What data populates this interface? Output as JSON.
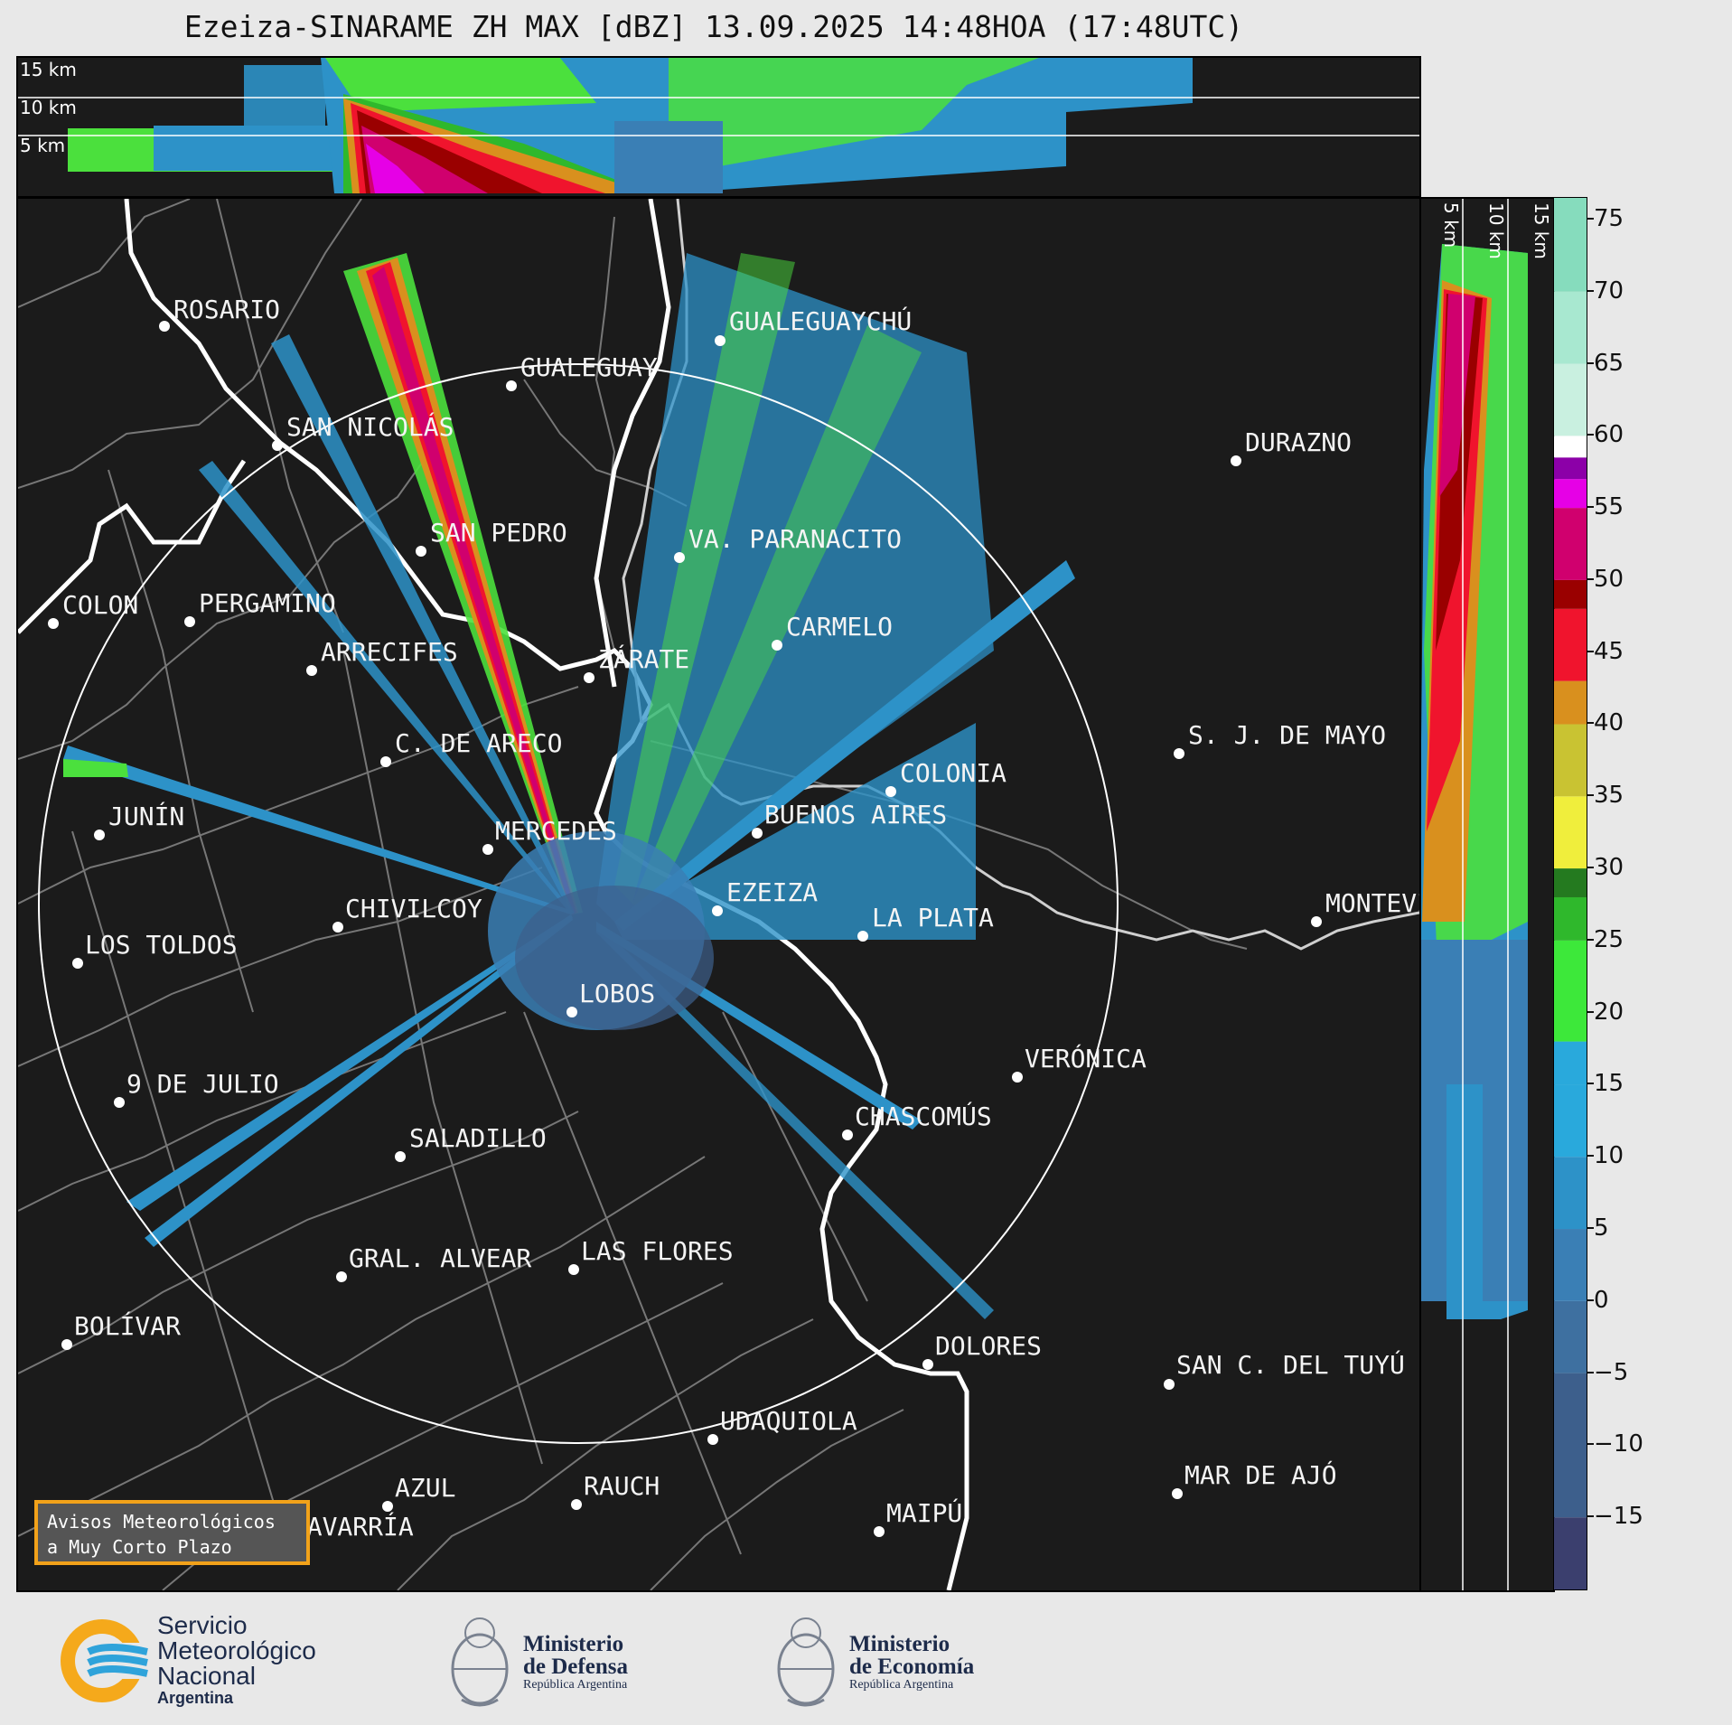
{
  "title": "Ezeiza-SINARAME ZH MAX [dBZ] 13.09.2025 14:48HOA (17:48UTC)",
  "top_panel": {
    "height_labels": [
      "15 km",
      "10 km",
      "5 km"
    ]
  },
  "right_panel": {
    "height_labels": [
      "5 km",
      "10 km",
      "15 km"
    ]
  },
  "colorbar": {
    "unit": "dBZ",
    "ticks": [
      "75",
      "70",
      "65",
      "60",
      "55",
      "50",
      "45",
      "40",
      "35",
      "30",
      "25",
      "20",
      "15",
      "10",
      "5",
      "0",
      "−5",
      "−10",
      "−15"
    ],
    "min": -20,
    "max": 76.5,
    "colors": {
      "n15": "#3b3f6e",
      "n5": "#3d5f8c",
      "0": "#3e70a0",
      "5": "#3a7fb5",
      "10": "#2d92c8",
      "15": "#29a9dc",
      "18": "#3de83a",
      "25": "#2fb82c",
      "28": "#247a1f",
      "30": "#f0ee3c",
      "35": "#c9c332",
      "40": "#d9901e",
      "43": "#f0142d",
      "48": "#9a0000",
      "50": "#d0006e",
      "55": "#e600e6",
      "57": "#8c00a8",
      "60": "#ffffff",
      "65": "#c9f0e0",
      "70": "#a8e8d0",
      "75": "#86dcbd"
    }
  },
  "map": {
    "radar_site": "EZEIZA",
    "cities": [
      {
        "name": "ROSARIO"
      },
      {
        "name": "GUALEGUAYCHÚ"
      },
      {
        "name": "GUALEGUAY"
      },
      {
        "name": "SAN NICOLÁS"
      },
      {
        "name": "DURAZNO"
      },
      {
        "name": "SAN PEDRO"
      },
      {
        "name": "VA. PARANACITO"
      },
      {
        "name": "COLON"
      },
      {
        "name": "PERGAMINO"
      },
      {
        "name": "CARMELO"
      },
      {
        "name": "ARRECIFES"
      },
      {
        "name": "ZÁRATE"
      },
      {
        "name": "S. J. DE MAYO"
      },
      {
        "name": "C. DE ARECO"
      },
      {
        "name": "COLONIA"
      },
      {
        "name": "JUNÍN"
      },
      {
        "name": "BUENOS AIRES"
      },
      {
        "name": "MERCEDES"
      },
      {
        "name": "EZEIZA"
      },
      {
        "name": "MONTEVIDEO"
      },
      {
        "name": "CHIVILCOY"
      },
      {
        "name": "LA PLATA"
      },
      {
        "name": "LOS TOLDOS"
      },
      {
        "name": "LOBOS"
      },
      {
        "name": "VERÓNICA"
      },
      {
        "name": "9 DE JULIO"
      },
      {
        "name": "CHASCOMÚS"
      },
      {
        "name": "SALADILLO"
      },
      {
        "name": "GRAL. ALVEAR"
      },
      {
        "name": "LAS FLORES"
      },
      {
        "name": "BOLÍVAR"
      },
      {
        "name": "DOLORES"
      },
      {
        "name": "SAN C. DEL TUYÚ"
      },
      {
        "name": "UDAQUIOLA"
      },
      {
        "name": "AZUL"
      },
      {
        "name": "RAUCH"
      },
      {
        "name": "MAR DE AJÓ"
      },
      {
        "name": "OLAVARRÍA"
      },
      {
        "name": "MAIPÚ"
      }
    ]
  },
  "avisos": {
    "line1": "Avisos Meteorológicos",
    "line2": "a Muy Corto Plazo"
  },
  "footer": {
    "smn": {
      "l1": "Servicio",
      "l2": "Meteorológico",
      "l3": "Nacional",
      "l4": "Argentina"
    },
    "defensa": {
      "l1": "Ministerio",
      "l2": "de Defensa",
      "l3": "República Argentina"
    },
    "economia": {
      "l1": "Ministerio",
      "l2": "de Economía",
      "l3": "República Argentina"
    }
  }
}
